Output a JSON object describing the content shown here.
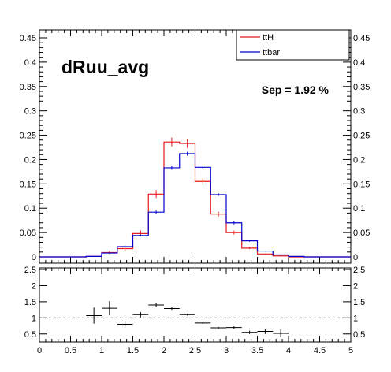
{
  "chart_data": [
    {
      "type": "line",
      "step": true,
      "title": "dRuu_avg",
      "annotation": "Sep = 1.92 %",
      "legend": {
        "position": "top-right",
        "entries": [
          "ttH",
          "ttbar"
        ]
      },
      "xlim": [
        0,
        5
      ],
      "ylim": [
        0,
        0.45
      ],
      "y_ticks": [
        "0",
        "0.05",
        "0.1",
        "0.15",
        "0.2",
        "0.25",
        "0.3",
        "0.35",
        "0.4",
        "0.45"
      ],
      "bin_edges": [
        0,
        0.25,
        0.5,
        0.75,
        1.0,
        1.25,
        1.5,
        1.75,
        2.0,
        2.25,
        2.5,
        2.75,
        3.0,
        3.25,
        3.5,
        3.75,
        4.0,
        4.25,
        4.5,
        4.75,
        5.0
      ],
      "series": [
        {
          "name": "ttH",
          "color": "#e41a1c",
          "values": [
            0,
            0,
            0,
            0.001,
            0.009,
            0.017,
            0.048,
            0.129,
            0.236,
            0.233,
            0.155,
            0.088,
            0.05,
            0.018,
            0.006,
            0.002,
            0,
            0,
            0,
            0
          ],
          "errors": [
            0,
            0,
            0,
            0.001,
            0.003,
            0.004,
            0.006,
            0.008,
            0.009,
            0.009,
            0.007,
            0.005,
            0.004,
            0.002,
            0.001,
            0.001,
            0,
            0,
            0,
            0
          ]
        },
        {
          "name": "ttbar",
          "color": "#0000cc",
          "values": [
            0,
            0,
            0,
            0.001,
            0.008,
            0.021,
            0.044,
            0.092,
            0.183,
            0.212,
            0.184,
            0.128,
            0.07,
            0.033,
            0.012,
            0.004,
            0.001,
            0,
            0,
            0
          ],
          "errors": [
            0,
            0,
            0,
            0,
            0.001,
            0.002,
            0.002,
            0.003,
            0.004,
            0.004,
            0.004,
            0.003,
            0.003,
            0.002,
            0.001,
            0.001,
            0,
            0,
            0,
            0
          ]
        }
      ]
    },
    {
      "type": "scatter",
      "xlim": [
        0,
        5
      ],
      "ylim": [
        0.25,
        2.5
      ],
      "y_ticks": [
        "0.5",
        "1",
        "1.5",
        "2",
        "2.5"
      ],
      "x_ticks": [
        "0",
        "0.5",
        "1",
        "1.5",
        "2",
        "2.5",
        "3",
        "3.5",
        "4",
        "4.5",
        "5"
      ],
      "reference_line": 1,
      "points": [
        {
          "x": 0.875,
          "y": 1.07,
          "xerr": 0.125,
          "yerr": 0.25
        },
        {
          "x": 1.125,
          "y": 1.3,
          "xerr": 0.125,
          "yerr": 0.22
        },
        {
          "x": 1.375,
          "y": 0.8,
          "xerr": 0.125,
          "yerr": 0.1
        },
        {
          "x": 1.625,
          "y": 1.1,
          "xerr": 0.125,
          "yerr": 0.08
        },
        {
          "x": 1.875,
          "y": 1.4,
          "xerr": 0.125,
          "yerr": 0.05
        },
        {
          "x": 2.125,
          "y": 1.29,
          "xerr": 0.125,
          "yerr": 0.04
        },
        {
          "x": 2.375,
          "y": 1.1,
          "xerr": 0.125,
          "yerr": 0.03
        },
        {
          "x": 2.625,
          "y": 0.84,
          "xerr": 0.125,
          "yerr": 0.03
        },
        {
          "x": 2.875,
          "y": 0.69,
          "xerr": 0.125,
          "yerr": 0.03
        },
        {
          "x": 3.125,
          "y": 0.7,
          "xerr": 0.125,
          "yerr": 0.04
        },
        {
          "x": 3.375,
          "y": 0.55,
          "xerr": 0.125,
          "yerr": 0.05
        },
        {
          "x": 3.625,
          "y": 0.58,
          "xerr": 0.125,
          "yerr": 0.08
        },
        {
          "x": 3.875,
          "y": 0.52,
          "xerr": 0.125,
          "yerr": 0.12
        }
      ]
    }
  ]
}
